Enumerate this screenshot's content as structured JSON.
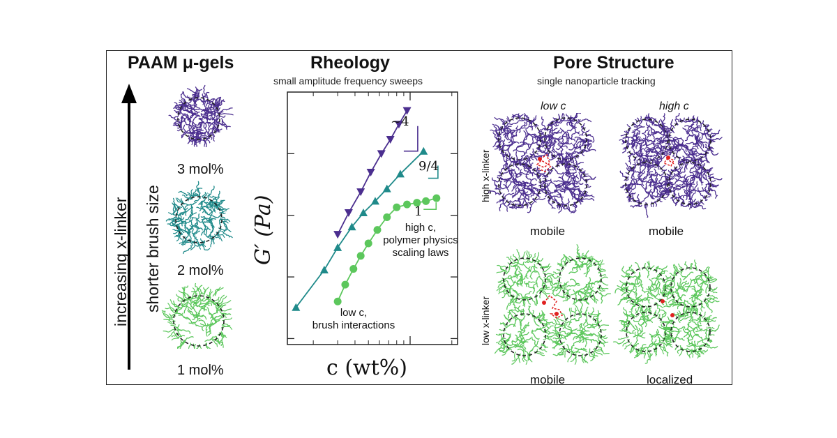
{
  "left_panel": {
    "title": "PAAM μ-gels",
    "arrow_label_1": "increasing x-linker",
    "arrow_label_2": "shorter brush size",
    "gels": [
      {
        "label": "3 mol%",
        "color": "#4b2e8f"
      },
      {
        "label": "2 mol%",
        "color": "#1f8a8a"
      },
      {
        "label": "1 mol%",
        "color": "#5cc75c"
      }
    ]
  },
  "middle_panel": {
    "title": "Rheology",
    "subtitle": "small amplitude frequency sweeps",
    "ylabel": "G′ (Pa)",
    "xlabel": "c (wt%)",
    "slopes": [
      "~4",
      "9/4",
      "1"
    ],
    "annotation_high_1": "high c,",
    "annotation_high_2": "polymer physics",
    "annotation_high_3": "scaling laws",
    "annotation_low_1": "low c,",
    "annotation_low_2": "brush interactions"
  },
  "chart_data": {
    "type": "scatter",
    "xlabel": "c (wt%)",
    "ylabel": "G′ (Pa)",
    "xscale": "log",
    "yscale": "log",
    "grid": false,
    "series": [
      {
        "marker": "triangle-down",
        "color": "#4b2e8f",
        "points": [
          [
            0.3,
            4.9
          ],
          [
            0.36,
            11
          ],
          [
            0.44,
            24
          ],
          [
            0.52,
            50
          ],
          [
            0.62,
            100
          ],
          [
            0.72,
            170
          ],
          [
            0.83,
            300
          ],
          [
            0.95,
            500
          ]
        ],
        "slope": "~4"
      },
      {
        "marker": "triangle-up",
        "color": "#1f8a8a",
        "points": [
          [
            0.15,
            0.32
          ],
          [
            0.24,
            1.3
          ],
          [
            0.3,
            3.0
          ],
          [
            0.38,
            6.5
          ],
          [
            0.46,
            11
          ],
          [
            0.56,
            17
          ],
          [
            0.68,
            27
          ],
          [
            0.85,
            47
          ],
          [
            1.25,
            110
          ]
        ],
        "slope": "9/4"
      },
      {
        "marker": "circle",
        "color": "#5cc75c",
        "points": [
          [
            0.3,
            0.4
          ],
          [
            0.34,
            0.75
          ],
          [
            0.39,
            1.35
          ],
          [
            0.44,
            2.2
          ],
          [
            0.5,
            3.5
          ],
          [
            0.58,
            5.8
          ],
          [
            0.68,
            9.3
          ],
          [
            0.8,
            13.5
          ],
          [
            0.95,
            15
          ],
          [
            1.12,
            16
          ],
          [
            1.3,
            17
          ],
          [
            1.55,
            19
          ]
        ],
        "slope": "1"
      }
    ]
  },
  "right_panel": {
    "title": "Pore Structure",
    "subtitle": "single nanoparticle tracking",
    "col_low": "low c",
    "col_high": "high c",
    "row_high": "high x-linker",
    "row_low": "low x-linker",
    "states": [
      "mobile",
      "mobile",
      "mobile",
      "localized"
    ]
  },
  "colors": {
    "purple": "#4b2e8f",
    "teal": "#1f8a8a",
    "green": "#5cc75c",
    "particle": "#e02020"
  }
}
